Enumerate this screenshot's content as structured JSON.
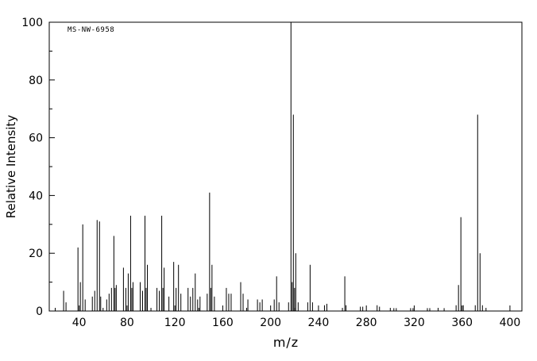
{
  "chart_data": {
    "type": "bar",
    "subtype": "mass-spectrum-stick-plot",
    "title": "",
    "annotation": "MS-NW-6958",
    "xlabel": "m/z",
    "ylabel": "Relative Intensity",
    "xlim": [
      15,
      410
    ],
    "ylim": [
      0,
      100
    ],
    "x_ticks": [
      40,
      80,
      120,
      160,
      200,
      240,
      280,
      320,
      360,
      400
    ],
    "x_minor_step": 20,
    "y_ticks": [
      0,
      20,
      40,
      60,
      80,
      100
    ],
    "y_minor_step": 10,
    "grid": false,
    "line_color": "#000000",
    "background_color": "#ffffff",
    "peaks": [
      [
        27,
        7
      ],
      [
        29,
        3
      ],
      [
        39,
        22
      ],
      [
        41,
        10
      ],
      [
        43,
        30
      ],
      [
        45,
        4
      ],
      [
        51,
        5
      ],
      [
        53,
        7
      ],
      [
        55,
        31.5
      ],
      [
        57,
        31
      ],
      [
        58,
        5
      ],
      [
        63,
        4
      ],
      [
        65,
        6
      ],
      [
        67,
        8
      ],
      [
        69,
        26
      ],
      [
        70,
        8
      ],
      [
        71,
        9
      ],
      [
        77,
        15
      ],
      [
        79,
        8
      ],
      [
        81,
        13
      ],
      [
        83,
        33
      ],
      [
        84,
        8
      ],
      [
        85,
        10
      ],
      [
        91,
        10
      ],
      [
        93,
        7
      ],
      [
        95,
        33
      ],
      [
        96,
        8
      ],
      [
        97,
        16
      ],
      [
        105,
        8
      ],
      [
        107,
        7
      ],
      [
        109,
        33
      ],
      [
        110,
        8
      ],
      [
        111,
        15
      ],
      [
        115,
        5
      ],
      [
        119,
        17
      ],
      [
        121,
        8
      ],
      [
        123,
        16
      ],
      [
        125,
        6
      ],
      [
        131,
        8
      ],
      [
        133,
        5
      ],
      [
        135,
        8
      ],
      [
        137,
        13
      ],
      [
        139,
        4
      ],
      [
        141,
        5
      ],
      [
        147,
        6
      ],
      [
        149,
        41
      ],
      [
        150,
        8
      ],
      [
        151,
        16
      ],
      [
        153,
        5
      ],
      [
        163,
        8
      ],
      [
        165,
        6
      ],
      [
        167,
        6
      ],
      [
        175,
        10
      ],
      [
        177,
        6
      ],
      [
        181,
        4
      ],
      [
        189,
        4
      ],
      [
        191,
        3
      ],
      [
        193,
        4
      ],
      [
        203,
        4
      ],
      [
        205,
        12
      ],
      [
        207,
        3
      ],
      [
        215,
        3
      ],
      [
        217,
        100
      ],
      [
        218,
        10
      ],
      [
        219,
        68
      ],
      [
        220,
        8
      ],
      [
        221,
        20
      ],
      [
        223,
        3
      ],
      [
        231,
        3
      ],
      [
        233,
        16
      ],
      [
        235,
        3
      ],
      [
        245,
        2
      ],
      [
        247,
        2.5
      ],
      [
        262,
        12
      ],
      [
        263,
        2
      ],
      [
        275,
        1.5
      ],
      [
        277,
        1.5
      ],
      [
        289,
        2
      ],
      [
        291,
        1.5
      ],
      [
        303,
        1
      ],
      [
        305,
        1
      ],
      [
        317,
        1
      ],
      [
        319,
        1
      ],
      [
        331,
        1
      ],
      [
        333,
        1
      ],
      [
        345,
        1
      ],
      [
        355,
        2
      ],
      [
        357,
        9
      ],
      [
        359,
        32.5
      ],
      [
        361,
        2
      ],
      [
        371,
        2
      ],
      [
        373,
        68
      ],
      [
        375,
        20
      ],
      [
        377,
        2
      ]
    ]
  }
}
